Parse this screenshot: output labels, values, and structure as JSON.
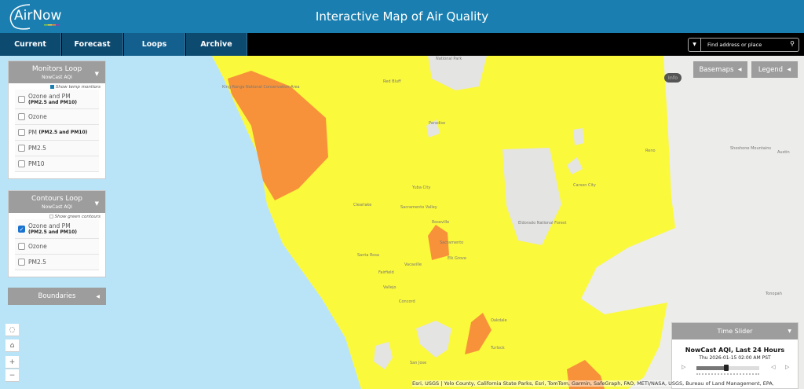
{
  "header": {
    "logo": "AirNow",
    "title": "Interactive Map of Air Quality"
  },
  "nav": {
    "tabs": [
      {
        "label": "Current"
      },
      {
        "label": "Forecast"
      },
      {
        "label": "Loops",
        "active": true
      },
      {
        "label": "Archive"
      }
    ]
  },
  "toolbar": {
    "info_label": "Info",
    "search_placeholder": "Find address or place"
  },
  "monitors_loop": {
    "title": "Monitors Loop",
    "subtitle": "NowCast AQI",
    "temp_label": "Show temp monitors",
    "temp_checked": true,
    "options": [
      {
        "label": "Ozone and PM",
        "sub": "(PM2.5 and PM10)",
        "checked": false
      },
      {
        "label": "Ozone",
        "checked": false
      },
      {
        "label": "PM",
        "inline": "(PM2.5 and PM10)",
        "checked": false
      },
      {
        "label": "PM2.5",
        "checked": false
      },
      {
        "label": "PM10",
        "checked": false
      }
    ]
  },
  "contours_loop": {
    "title": "Contours Loop",
    "subtitle": "NowCast AQI",
    "green_label": "Show green contours",
    "green_checked": false,
    "options": [
      {
        "label": "Ozone and PM",
        "sub": "(PM2.5 and PM10)",
        "checked": true
      },
      {
        "label": "Ozone",
        "checked": false
      },
      {
        "label": "PM2.5",
        "checked": false
      }
    ]
  },
  "boundaries": {
    "title": "Boundaries"
  },
  "map_buttons": {
    "basemaps": "Basemaps",
    "legend": "Legend"
  },
  "map_labels": [
    "National Park",
    "Red Bluff",
    "Paradise",
    "Reno",
    "Yuba City",
    "Carson City",
    "Sacramento Valley",
    "Clearlake",
    "Roseville",
    "Sacramento",
    "Eldorado National Forest",
    "Santa Rosa",
    "Elk Grove",
    "Vacaville",
    "Fairfield",
    "Vallejo",
    "Concord",
    "Oakdale",
    "Turlock",
    "San Jose",
    "Shoshone Mountains",
    "Austin",
    "Tonopah",
    "King Range National Conservation Area"
  ],
  "time_slider": {
    "header": "Time Slider",
    "title": "NowCast AQI, Last 24 Hours",
    "time": "Thu 2026-01-15 02:00 AM PST",
    "progress": 0.48
  },
  "attribution": "Esri, USGS | Yolo County, California State Parks, Esri, TomTom, Garmin, SafeGraph, FAO, METI/NASA, USGS, Bureau of Land Management, EPA, N...",
  "colors": {
    "header": "#1a7fb0",
    "aqi_moderate": "#ffff33",
    "aqi_usg": "#ff8c33",
    "ocean": "#b9e4f8",
    "land": "#ececea"
  }
}
